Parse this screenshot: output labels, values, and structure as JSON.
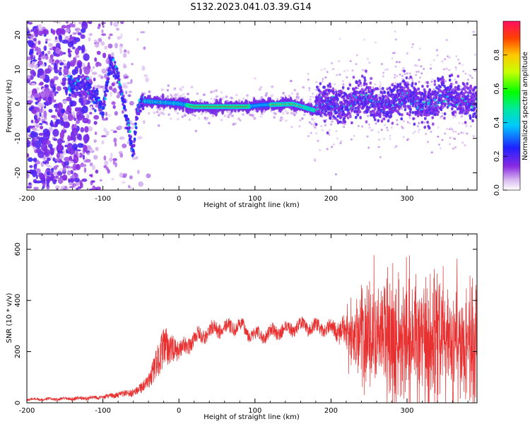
{
  "figure_title": "S132.2023.041.03.39.G14",
  "colors": {
    "snr_line": "#e83030",
    "axis": "#000000",
    "background": "#ffffff"
  },
  "chart_data": [
    {
      "type": "heatmap",
      "title": "",
      "xlabel": "Height of straight line (km)",
      "ylabel": "Frequency (Hz)",
      "xlim": [
        -200,
        392
      ],
      "ylim": [
        -25,
        24
      ],
      "x_ticks": [
        -200,
        -100,
        0,
        100,
        200,
        300
      ],
      "y_ticks": [
        -20,
        -10,
        0,
        10,
        20
      ],
      "grid": false,
      "colormap": "rainbow (purple to red)",
      "colorbar": {
        "label": "Normalized spectral amplitude",
        "range": [
          0,
          1
        ],
        "ticks": [
          "0.0",
          "0.2",
          "0.4",
          "0.6",
          "0.8"
        ]
      },
      "ridge": {
        "description_points": [
          {
            "x": -140,
            "y": 6
          },
          {
            "x": -120,
            "y": 5
          },
          {
            "x": -110,
            "y": 2
          },
          {
            "x": -100,
            "y": -2
          },
          {
            "x": -90,
            "y": 12
          },
          {
            "x": -80,
            "y": 8
          },
          {
            "x": -70,
            "y": -3
          },
          {
            "x": -60,
            "y": -14
          },
          {
            "x": -55,
            "y": -2
          },
          {
            "x": -45,
            "y": 0.8
          },
          {
            "x": 0,
            "y": 0.1
          },
          {
            "x": 20,
            "y": -0.8
          },
          {
            "x": 90,
            "y": -0.8
          },
          {
            "x": 110,
            "y": -0.3
          },
          {
            "x": 150,
            "y": 0
          },
          {
            "x": 180,
            "y": -2
          },
          {
            "x": 200,
            "y": 0.5
          },
          {
            "x": 300,
            "y": 1
          },
          {
            "x": 390,
            "y": 1.5
          }
        ],
        "peak_amplitude": 1.0
      }
    },
    {
      "type": "line",
      "title": "",
      "xlabel": "Height of straight line (km)",
      "ylabel": "SNR (10 * v/v)",
      "xlim": [
        -200,
        392
      ],
      "ylim": [
        0,
        660
      ],
      "x_ticks": [
        -200,
        -100,
        0,
        100,
        200,
        300
      ],
      "y_ticks": [
        0,
        200,
        400,
        600
      ],
      "grid": false,
      "series": [
        {
          "envelope_x": [
            -200,
            -150,
            -100,
            -60,
            -40,
            -30,
            -20,
            -10,
            0,
            20,
            50,
            80,
            100,
            130,
            160,
            200,
            220,
            240,
            260,
            300,
            340,
            392
          ],
          "envelope_mean": [
            14,
            15,
            22,
            40,
            80,
            150,
            220,
            210,
            200,
            250,
            290,
            300,
            260,
            280,
            300,
            290,
            280,
            260,
            250,
            250,
            250,
            240
          ],
          "envelope_noise": [
            5,
            6,
            8,
            15,
            30,
            60,
            80,
            60,
            35,
            30,
            30,
            25,
            25,
            25,
            25,
            25,
            60,
            130,
            170,
            180,
            180,
            160
          ]
        }
      ]
    }
  ]
}
